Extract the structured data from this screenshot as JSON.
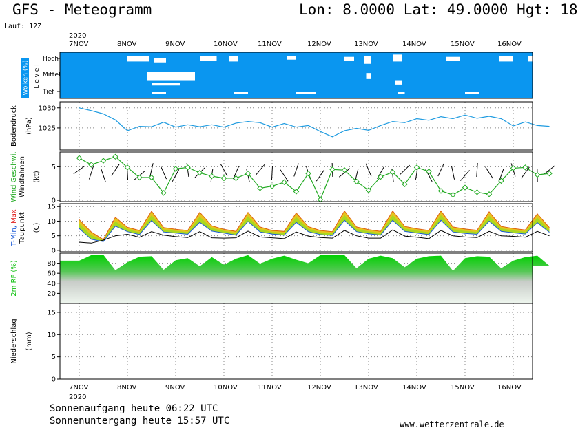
{
  "header": {
    "title": "GFS - Meteogramm",
    "coords": "Lon: 8.0000  Lat: 49.0000  Hgt: 18",
    "run": "Lauf: 12Z"
  },
  "footer": {
    "sunrise": "Sonnenaufgang heute 06:22 UTC",
    "sunset": "Sonnenuntergang heute 15:57 UTC",
    "website": "www.wetterzentrale.de"
  },
  "chart_data": [
    {
      "type": "heatmap",
      "panel": "clouds",
      "ylabel": "Wolken (%)",
      "ylabel2": "L e v e l",
      "levels": [
        "Hoch",
        "Mittel",
        "Tief"
      ],
      "year": "2020",
      "x_labels": [
        "7NOV",
        "8NOV",
        "9NOV",
        "10NOV",
        "11NOV",
        "12NOV",
        "13NOV",
        "14NOV",
        "15NOV",
        "16NOV"
      ],
      "colors": {
        "cloud": "#0a96f0",
        "clear": "#ffffff"
      },
      "clear_patches_days": [
        [
          1.0,
          0.08,
          1.45,
          0.2
        ],
        [
          1.55,
          0.12,
          1.8,
          0.22
        ],
        [
          1.4,
          0.42,
          2.4,
          0.62
        ],
        [
          1.5,
          0.66,
          2.1,
          0.72
        ],
        [
          2.5,
          0.08,
          2.85,
          0.18
        ],
        [
          3.1,
          0.08,
          3.3,
          0.2
        ],
        [
          4.3,
          0.08,
          4.5,
          0.16
        ],
        [
          5.5,
          0.1,
          5.7,
          0.18
        ],
        [
          5.9,
          0.08,
          6.05,
          0.25
        ],
        [
          5.95,
          0.45,
          6.05,
          0.58
        ],
        [
          6.5,
          0.05,
          6.7,
          0.2
        ],
        [
          6.55,
          0.62,
          6.7,
          0.7
        ],
        [
          7.6,
          0.1,
          7.9,
          0.18
        ],
        [
          8.7,
          0.08,
          9.0,
          0.2
        ],
        [
          9.3,
          0.08,
          9.6,
          0.2
        ],
        [
          9.5,
          0.45,
          9.85,
          0.65
        ],
        [
          1.5,
          0.86,
          1.8,
          0.9
        ],
        [
          3.2,
          0.86,
          3.5,
          0.9
        ],
        [
          4.5,
          0.86,
          4.9,
          0.9
        ],
        [
          6.6,
          0.86,
          6.75,
          0.9
        ],
        [
          8.0,
          0.86,
          8.3,
          0.9
        ],
        [
          9.8,
          0.86,
          9.9,
          0.95
        ]
      ]
    },
    {
      "type": "line",
      "panel": "pressure",
      "ylabel": "Bodendruck",
      "unit": "(hPa)",
      "yticks": [
        1025,
        1030
      ],
      "ylim": [
        1019.5,
        1031.5
      ],
      "color": "#1e9be0",
      "x_days": [
        0,
        0.25,
        0.5,
        0.75,
        1,
        1.25,
        1.5,
        1.75,
        2,
        2.25,
        2.5,
        2.75,
        3,
        3.25,
        3.5,
        3.75,
        4,
        4.25,
        4.5,
        4.75,
        5,
        5.25,
        5.5,
        5.75,
        6,
        6.25,
        6.5,
        6.75,
        7,
        7.25,
        7.5,
        7.75,
        8,
        8.25,
        8.5,
        8.75,
        9,
        9.25,
        9.5,
        9.75
      ],
      "values": [
        1030,
        1029.3,
        1028.5,
        1027,
        1024.3,
        1025.4,
        1025.3,
        1026.4,
        1025.2,
        1025.8,
        1025.3,
        1025.8,
        1025.2,
        1026.2,
        1026.6,
        1026.3,
        1025.2,
        1026.1,
        1025.2,
        1025.6,
        1024.1,
        1022.8,
        1024.3,
        1024.9,
        1024.4,
        1025.6,
        1026.6,
        1026.3,
        1027.3,
        1026.9,
        1027.8,
        1027.3,
        1028.2,
        1027.4,
        1027.9,
        1027.3,
        1025.5,
        1026.5,
        1025.6,
        1025.4
      ]
    },
    {
      "type": "line",
      "panel": "wind",
      "ylabel": "Wind Geschwi.",
      "ylabel2": "Windfahnen",
      "unit": "(kt)",
      "yticks": [
        0,
        5
      ],
      "ylim": [
        -0.2,
        7.2
      ],
      "color": "#22aa22",
      "x_days": [
        0,
        0.25,
        0.5,
        0.75,
        1,
        1.25,
        1.5,
        1.75,
        2,
        2.25,
        2.5,
        2.75,
        3,
        3.25,
        3.5,
        3.75,
        4,
        4.25,
        4.5,
        4.75,
        5,
        5.25,
        5.5,
        5.75,
        6,
        6.25,
        6.5,
        6.75,
        7,
        7.25,
        7.5,
        7.75,
        8,
        8.25,
        8.5,
        8.75,
        9,
        9.25,
        9.5,
        9.75
      ],
      "values": [
        6.3,
        5.3,
        5.9,
        6.5,
        4.9,
        3.4,
        3.4,
        1.1,
        4.7,
        4.9,
        4.1,
        3.6,
        3.3,
        3.3,
        4.0,
        1.8,
        2.1,
        2.7,
        1.3,
        4.0,
        0.1,
        4.6,
        4.5,
        2.8,
        1.5,
        3.5,
        4.2,
        2.4,
        4.9,
        4.3,
        1.4,
        0.8,
        1.9,
        1.2,
        0.9,
        2.9,
        4.8,
        4.9,
        3.8,
        4.0
      ],
      "barbs": "windfahnen"
    },
    {
      "type": "area",
      "panel": "temperature",
      "ylabel": "T-Min, Max",
      "ylabel2": "Taupunkt",
      "unit": "(C)",
      "yticks": [
        0,
        5,
        10,
        15
      ],
      "ylim": [
        -0.5,
        16
      ],
      "colors": {
        "max": "#e06010",
        "band": "#a8d820",
        "band_top": "#f0c020",
        "min": "#1a5ad8",
        "dew": "#000000"
      },
      "x_days": [
        0,
        0.25,
        0.5,
        0.75,
        1,
        1.25,
        1.5,
        1.75,
        2,
        2.25,
        2.5,
        2.75,
        3,
        3.25,
        3.5,
        3.75,
        4,
        4.25,
        4.5,
        4.75,
        5,
        5.25,
        5.5,
        5.75,
        6,
        6.25,
        6.5,
        6.75,
        7,
        7.25,
        7.5,
        7.75,
        8,
        8.25,
        8.5,
        8.75,
        9,
        9.25,
        9.5,
        9.75
      ],
      "t_max": [
        10.5,
        6.3,
        3.7,
        11.3,
        7.9,
        6.8,
        13.4,
        7.8,
        7.2,
        6.8,
        13,
        8.4,
        7.2,
        6.5,
        13,
        8.0,
        6.8,
        6.5,
        12.8,
        8.1,
        6.8,
        6.4,
        13.5,
        8.0,
        7.1,
        6.5,
        13.5,
        8.2,
        7.4,
        6.8,
        13.5,
        8.0,
        7.3,
        6.9,
        13.2,
        8.2,
        7.5,
        7.0,
        12.5,
        7.8
      ],
      "t_min": [
        7.5,
        3.8,
        3.0,
        8.3,
        6.4,
        5.4,
        10.2,
        6.3,
        5.9,
        5.5,
        9.6,
        6.6,
        5.9,
        5.2,
        9.9,
        6.3,
        5.6,
        5.2,
        9.6,
        6.4,
        5.4,
        5.1,
        10.3,
        6.4,
        5.7,
        5.2,
        10.3,
        6.5,
        5.9,
        5.4,
        10.3,
        6.3,
        5.8,
        5.5,
        10.0,
        6.5,
        6.0,
        5.6,
        9.5,
        6.2
      ],
      "dewpoint": [
        2.8,
        2.5,
        3.5,
        5.0,
        5.5,
        4.5,
        6.4,
        5.2,
        4.7,
        4.4,
        6.4,
        4.3,
        4.2,
        4.3,
        6.6,
        4.6,
        4.3,
        4.0,
        6.3,
        4.9,
        4.4,
        4.2,
        6.8,
        5.0,
        4.2,
        4.2,
        7.0,
        4.9,
        4.5,
        4.0,
        6.8,
        5.0,
        4.6,
        4.4,
        6.5,
        5.0,
        4.8,
        4.5,
        6.5,
        5.0
      ]
    },
    {
      "type": "area",
      "panel": "humidity",
      "ylabel": "2m RF (%)",
      "yticks": [
        20,
        40,
        60,
        80
      ],
      "ylim": [
        0,
        100
      ],
      "color": "#10c010",
      "x_days": [
        0,
        0.25,
        0.5,
        0.75,
        1,
        1.25,
        1.5,
        1.75,
        2,
        2.25,
        2.5,
        2.75,
        3,
        3.25,
        3.5,
        3.75,
        4,
        4.25,
        4.5,
        4.75,
        5,
        5.25,
        5.5,
        5.75,
        6,
        6.25,
        6.5,
        6.75,
        7,
        7.25,
        7.5,
        7.75,
        8,
        8.25,
        8.5,
        8.75,
        9,
        9.25,
        9.5,
        9.75
      ],
      "values": [
        85,
        96,
        97,
        66,
        82,
        93,
        94,
        67,
        86,
        90,
        74,
        92,
        77,
        89,
        96,
        79,
        89,
        95,
        87,
        80,
        96,
        97,
        96,
        70,
        89,
        95,
        90,
        72,
        89,
        94,
        95,
        65,
        90,
        94,
        93,
        70,
        85,
        92,
        95,
        75
      ]
    },
    {
      "type": "bar",
      "panel": "precipitation",
      "ylabel": "Niederschlag",
      "unit": "(mm)",
      "yticks": [
        0,
        5,
        10,
        15
      ],
      "ylim": [
        0,
        17
      ],
      "values": []
    }
  ]
}
